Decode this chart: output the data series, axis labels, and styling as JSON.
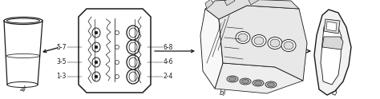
{
  "fig_width": 4.74,
  "fig_height": 1.24,
  "dpi": 100,
  "background": "#ffffff",
  "label_a": "a)",
  "label_b": "b)",
  "label_c": "c)",
  "left_labels": [
    "1-3",
    "3-5",
    "5-7"
  ],
  "right_labels": [
    "2-4",
    "4-6",
    "6-8"
  ],
  "line_color": "#1a1a1a",
  "line_width": 0.7,
  "font_size": 5.5
}
